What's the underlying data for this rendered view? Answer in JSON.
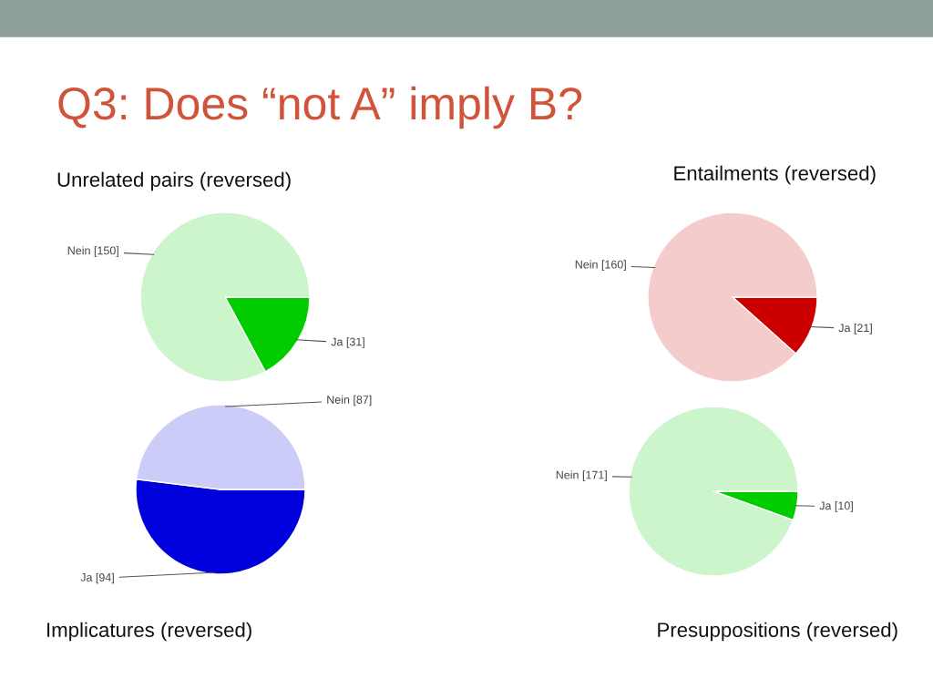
{
  "chart_data": [
    {
      "type": "pie",
      "title": "Unrelated pairs (reversed)",
      "categories": [
        "Ja [31]",
        "Nein [150]"
      ],
      "values": [
        31,
        150
      ],
      "colors": [
        "#00cc00",
        "#ccf5cc"
      ],
      "annotations": [
        "Q3: Does “not A” imply B?"
      ]
    },
    {
      "type": "pie",
      "title": "Entailments (reversed)",
      "categories": [
        "Ja [21]",
        "Nein [160]"
      ],
      "values": [
        21,
        160
      ],
      "colors": [
        "#cc0000",
        "#f5cccc"
      ]
    },
    {
      "type": "pie",
      "title": "Implicatures (reversed)",
      "categories": [
        "Ja [94]",
        "Nein [87]"
      ],
      "values": [
        94,
        87
      ],
      "colors": [
        "#0000dd",
        "#ccccf8"
      ]
    },
    {
      "type": "pie",
      "title": "Presuppositions (reversed)",
      "categories": [
        "Ja [10]",
        "Nein [171]"
      ],
      "values": [
        10,
        171
      ],
      "colors": [
        "#00cc00",
        "#ccf5cc"
      ]
    }
  ]
}
